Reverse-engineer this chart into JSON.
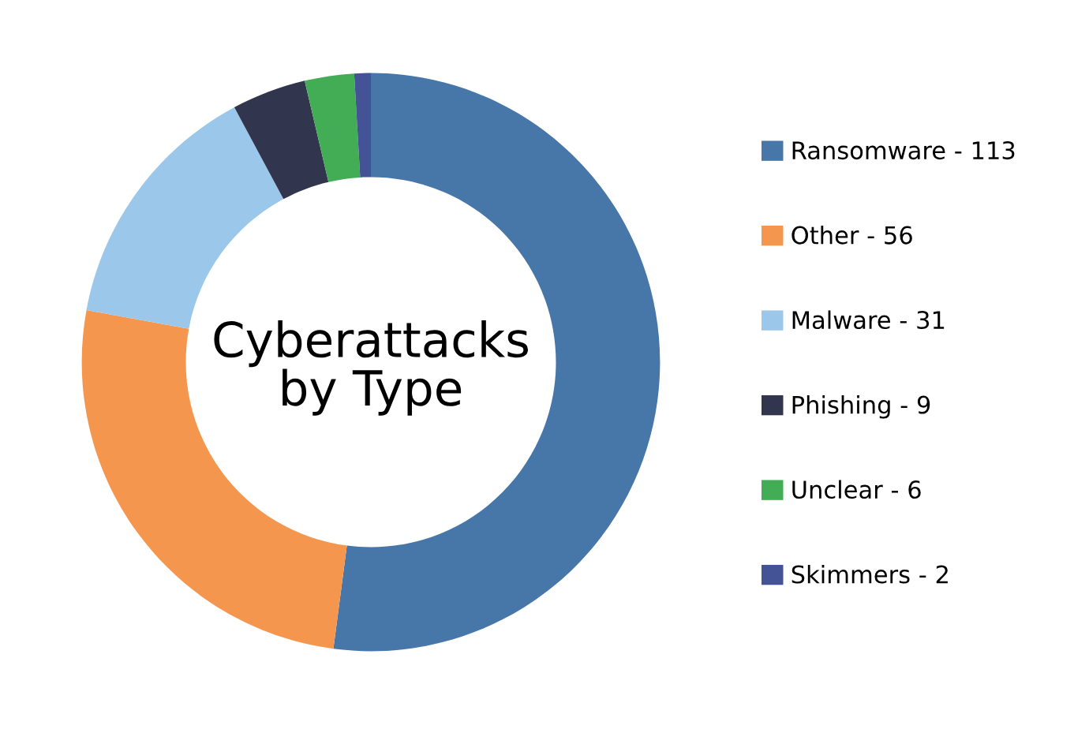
{
  "chart_data": {
    "type": "donut",
    "title": "Cyberattacks\nby Type",
    "categories": [
      "Ransomware - 113",
      "Other - 56",
      "Malware - 31",
      "Phishing - 9",
      "Unclear - 6",
      "Skimmers - 2"
    ],
    "values": [
      52.07,
      25.81,
      14.29,
      4.15,
      2.76,
      0.92
    ],
    "colors": [
      "#4677a8",
      "#f5964f",
      "#9bc8ea",
      "#31354e",
      "#43ad55",
      "#435396"
    ],
    "legend": "right"
  }
}
